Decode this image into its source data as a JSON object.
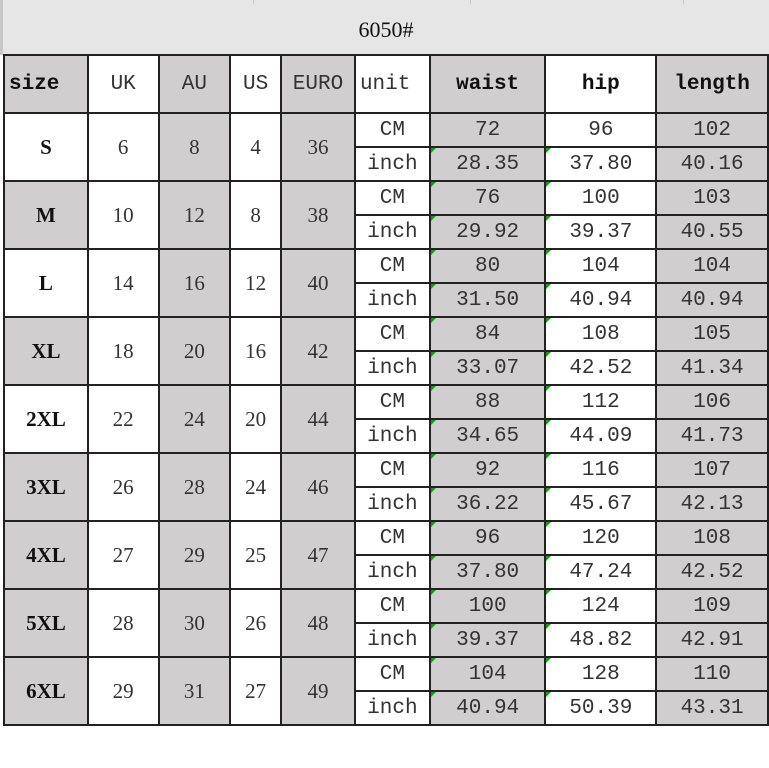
{
  "title": "6050#",
  "colors": {
    "shade": "#d0cece",
    "title_bg": "#e7e6e6",
    "marker": "#1a9a1a"
  },
  "headers": [
    "size",
    "UK",
    "AU",
    "US",
    "EURO",
    "unit",
    "waist",
    "hip",
    "length"
  ],
  "units": [
    "CM",
    "inch"
  ],
  "rows": [
    {
      "size": "S",
      "uk": "6",
      "au": "8",
      "us": "4",
      "euro": "36",
      "cm": [
        "72",
        "96",
        "102"
      ],
      "inch": [
        "28.35",
        "37.80",
        "40.16"
      ]
    },
    {
      "size": "M",
      "uk": "10",
      "au": "12",
      "us": "8",
      "euro": "38",
      "cm": [
        "76",
        "100",
        "103"
      ],
      "inch": [
        "29.92",
        "39.37",
        "40.55"
      ]
    },
    {
      "size": "L",
      "uk": "14",
      "au": "16",
      "us": "12",
      "euro": "40",
      "cm": [
        "80",
        "104",
        "104"
      ],
      "inch": [
        "31.50",
        "40.94",
        "40.94"
      ]
    },
    {
      "size": "XL",
      "uk": "18",
      "au": "20",
      "us": "16",
      "euro": "42",
      "cm": [
        "84",
        "108",
        "105"
      ],
      "inch": [
        "33.07",
        "42.52",
        "41.34"
      ]
    },
    {
      "size": "2XL",
      "uk": "22",
      "au": "24",
      "us": "20",
      "euro": "44",
      "cm": [
        "88",
        "112",
        "106"
      ],
      "inch": [
        "34.65",
        "44.09",
        "41.73"
      ]
    },
    {
      "size": "3XL",
      "uk": "26",
      "au": "28",
      "us": "24",
      "euro": "46",
      "cm": [
        "92",
        "116",
        "107"
      ],
      "inch": [
        "36.22",
        "45.67",
        "42.13"
      ]
    },
    {
      "size": "4XL",
      "uk": "27",
      "au": "29",
      "us": "25",
      "euro": "47",
      "cm": [
        "96",
        "120",
        "108"
      ],
      "inch": [
        "37.80",
        "47.24",
        "42.52"
      ]
    },
    {
      "size": "5XL",
      "uk": "28",
      "au": "30",
      "us": "26",
      "euro": "48",
      "cm": [
        "100",
        "124",
        "109"
      ],
      "inch": [
        "39.37",
        "48.82",
        "42.91"
      ]
    },
    {
      "size": "6XL",
      "uk": "29",
      "au": "31",
      "us": "27",
      "euro": "49",
      "cm": [
        "104",
        "128",
        "110"
      ],
      "inch": [
        "40.94",
        "50.39",
        "43.31"
      ]
    }
  ]
}
